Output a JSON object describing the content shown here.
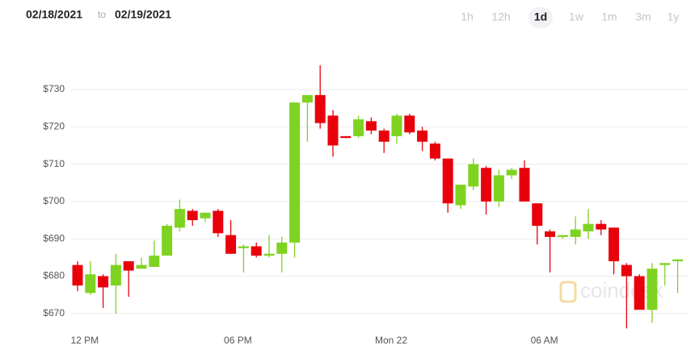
{
  "header": {
    "from": "02/18/2021",
    "separator": "to",
    "to": "02/19/2021",
    "ranges": [
      {
        "label": "1h",
        "selected": false
      },
      {
        "label": "12h",
        "selected": false
      },
      {
        "label": "1d",
        "selected": true
      },
      {
        "label": "1w",
        "selected": false
      },
      {
        "label": "1m",
        "selected": false
      },
      {
        "label": "3m",
        "selected": false
      },
      {
        "label": "1y",
        "selected": false
      }
    ]
  },
  "chart_data": {
    "type": "candlestick",
    "watermark": "coindesk",
    "categories": [
      null,
      "12 PM",
      null,
      null,
      null,
      null,
      null,
      null,
      null,
      null,
      null,
      null,
      null,
      "06 PM",
      null,
      null,
      null,
      null,
      null,
      null,
      null,
      null,
      null,
      null,
      null,
      "Mon 22",
      null,
      null,
      null,
      null,
      null,
      null,
      null,
      null,
      null,
      null,
      null,
      "06 AM",
      null,
      null,
      null,
      null,
      null,
      null,
      null,
      null,
      null,
      null
    ],
    "open": [
      683,
      675.5,
      680,
      677.5,
      684,
      682,
      682.5,
      685.5,
      693,
      697.5,
      695.5,
      697.5,
      691,
      687.5,
      688,
      685.5,
      686,
      689,
      726.5,
      728.5,
      723,
      717.5,
      717.5,
      721.5,
      719,
      717.5,
      723,
      719,
      715.5,
      711.5,
      699,
      704,
      709,
      700,
      707,
      709,
      699.5,
      692,
      690.5,
      690.5,
      692,
      694,
      693,
      683,
      680,
      671,
      683,
      684
    ],
    "high": [
      684,
      684,
      680.5,
      686,
      684,
      685,
      689.5,
      694,
      700.5,
      698,
      697,
      698,
      695,
      688.5,
      689,
      691,
      690.5,
      726.5,
      728.5,
      736.5,
      724.5,
      717.5,
      723,
      722.5,
      719.5,
      723.5,
      723.5,
      720,
      716,
      711.5,
      704.5,
      711.5,
      709.5,
      708.5,
      709,
      711,
      699.5,
      692.5,
      691,
      696,
      698,
      695,
      693,
      683.5,
      680.5,
      683.5,
      683.5,
      684.5
    ],
    "low": [
      676,
      675,
      671.5,
      670,
      674.5,
      682,
      682.5,
      685.5,
      692,
      693.5,
      694.5,
      690.5,
      686,
      681,
      685,
      685,
      681,
      685,
      716,
      719.5,
      712,
      717,
      717,
      718,
      713,
      715.5,
      718,
      713.5,
      711,
      697,
      698,
      703,
      696.5,
      698.5,
      706,
      700,
      688.5,
      681,
      690,
      688.5,
      690,
      691,
      680.5,
      666,
      671,
      667.5,
      677.5,
      675.5
    ],
    "close": [
      677.5,
      680.5,
      677,
      683,
      681.5,
      683,
      685.5,
      693.5,
      698,
      695,
      697,
      691.5,
      686,
      688,
      685.5,
      686,
      689,
      726.5,
      728.5,
      721,
      715,
      717,
      722,
      719,
      716,
      723,
      718.5,
      716,
      711.5,
      699.5,
      704.5,
      710,
      700,
      707,
      708.5,
      700,
      693.5,
      690.5,
      691,
      692.5,
      694,
      692.5,
      684,
      680,
      671,
      682,
      683.5,
      684.5
    ],
    "up_color": "#7ed321",
    "down_color": "#e8000b",
    "ylim": [
      665,
      741
    ],
    "yticks": [
      {
        "value": 670,
        "label": "$670"
      },
      {
        "value": 680,
        "label": "$680"
      },
      {
        "value": 690,
        "label": "$690"
      },
      {
        "value": 700,
        "label": "$700"
      },
      {
        "value": 710,
        "label": "$710"
      },
      {
        "value": 720,
        "label": "$720"
      },
      {
        "value": 730,
        "label": "$730"
      }
    ],
    "grid": true
  }
}
